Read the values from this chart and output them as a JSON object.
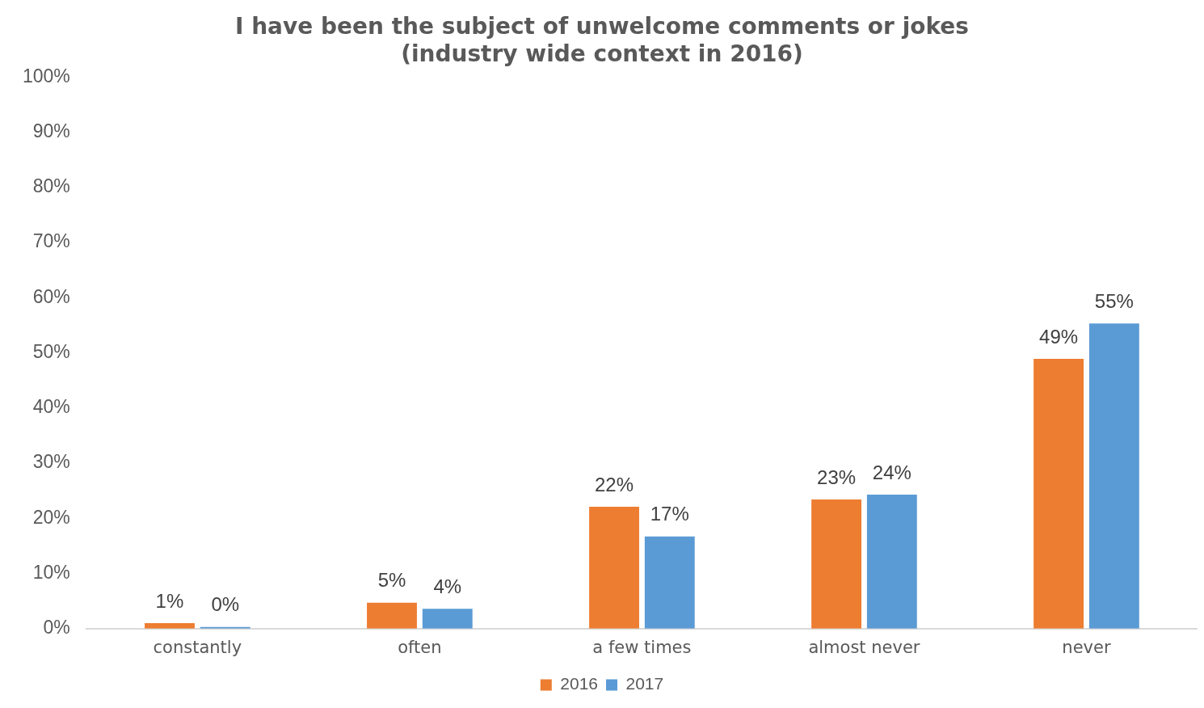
{
  "chart_data": {
    "type": "bar",
    "title": "I have been the subject of unwelcome comments or jokes\n(industry wide context in 2016)",
    "categories": [
      "constantly",
      "often",
      "a few times",
      "almost never",
      "never"
    ],
    "series": [
      {
        "name": "2016",
        "color": "#ed7d31",
        "values": [
          1.0,
          4.7,
          22.1,
          23.4,
          48.9
        ],
        "value_labels": [
          "1%",
          "5%",
          "22%",
          "23%",
          "49%"
        ]
      },
      {
        "name": "2017",
        "color": "#5b9bd5",
        "values": [
          0.3,
          3.6,
          16.7,
          24.3,
          55.3
        ],
        "value_labels": [
          "0%",
          "4%",
          "17%",
          "24%",
          "55%"
        ]
      }
    ],
    "ylim": [
      0,
      100
    ],
    "yticks": [
      {
        "value": 0,
        "label": "0%"
      },
      {
        "value": 10,
        "label": "10%"
      },
      {
        "value": 20,
        "label": "20%"
      },
      {
        "value": 30,
        "label": "30%"
      },
      {
        "value": 40,
        "label": "40%"
      },
      {
        "value": 50,
        "label": "50%"
      },
      {
        "value": 60,
        "label": "60%"
      },
      {
        "value": 70,
        "label": "70%"
      },
      {
        "value": 80,
        "label": "80%"
      },
      {
        "value": 90,
        "label": "90%"
      },
      {
        "value": 100,
        "label": "100%"
      }
    ],
    "grid": false,
    "legend": "bottom"
  }
}
